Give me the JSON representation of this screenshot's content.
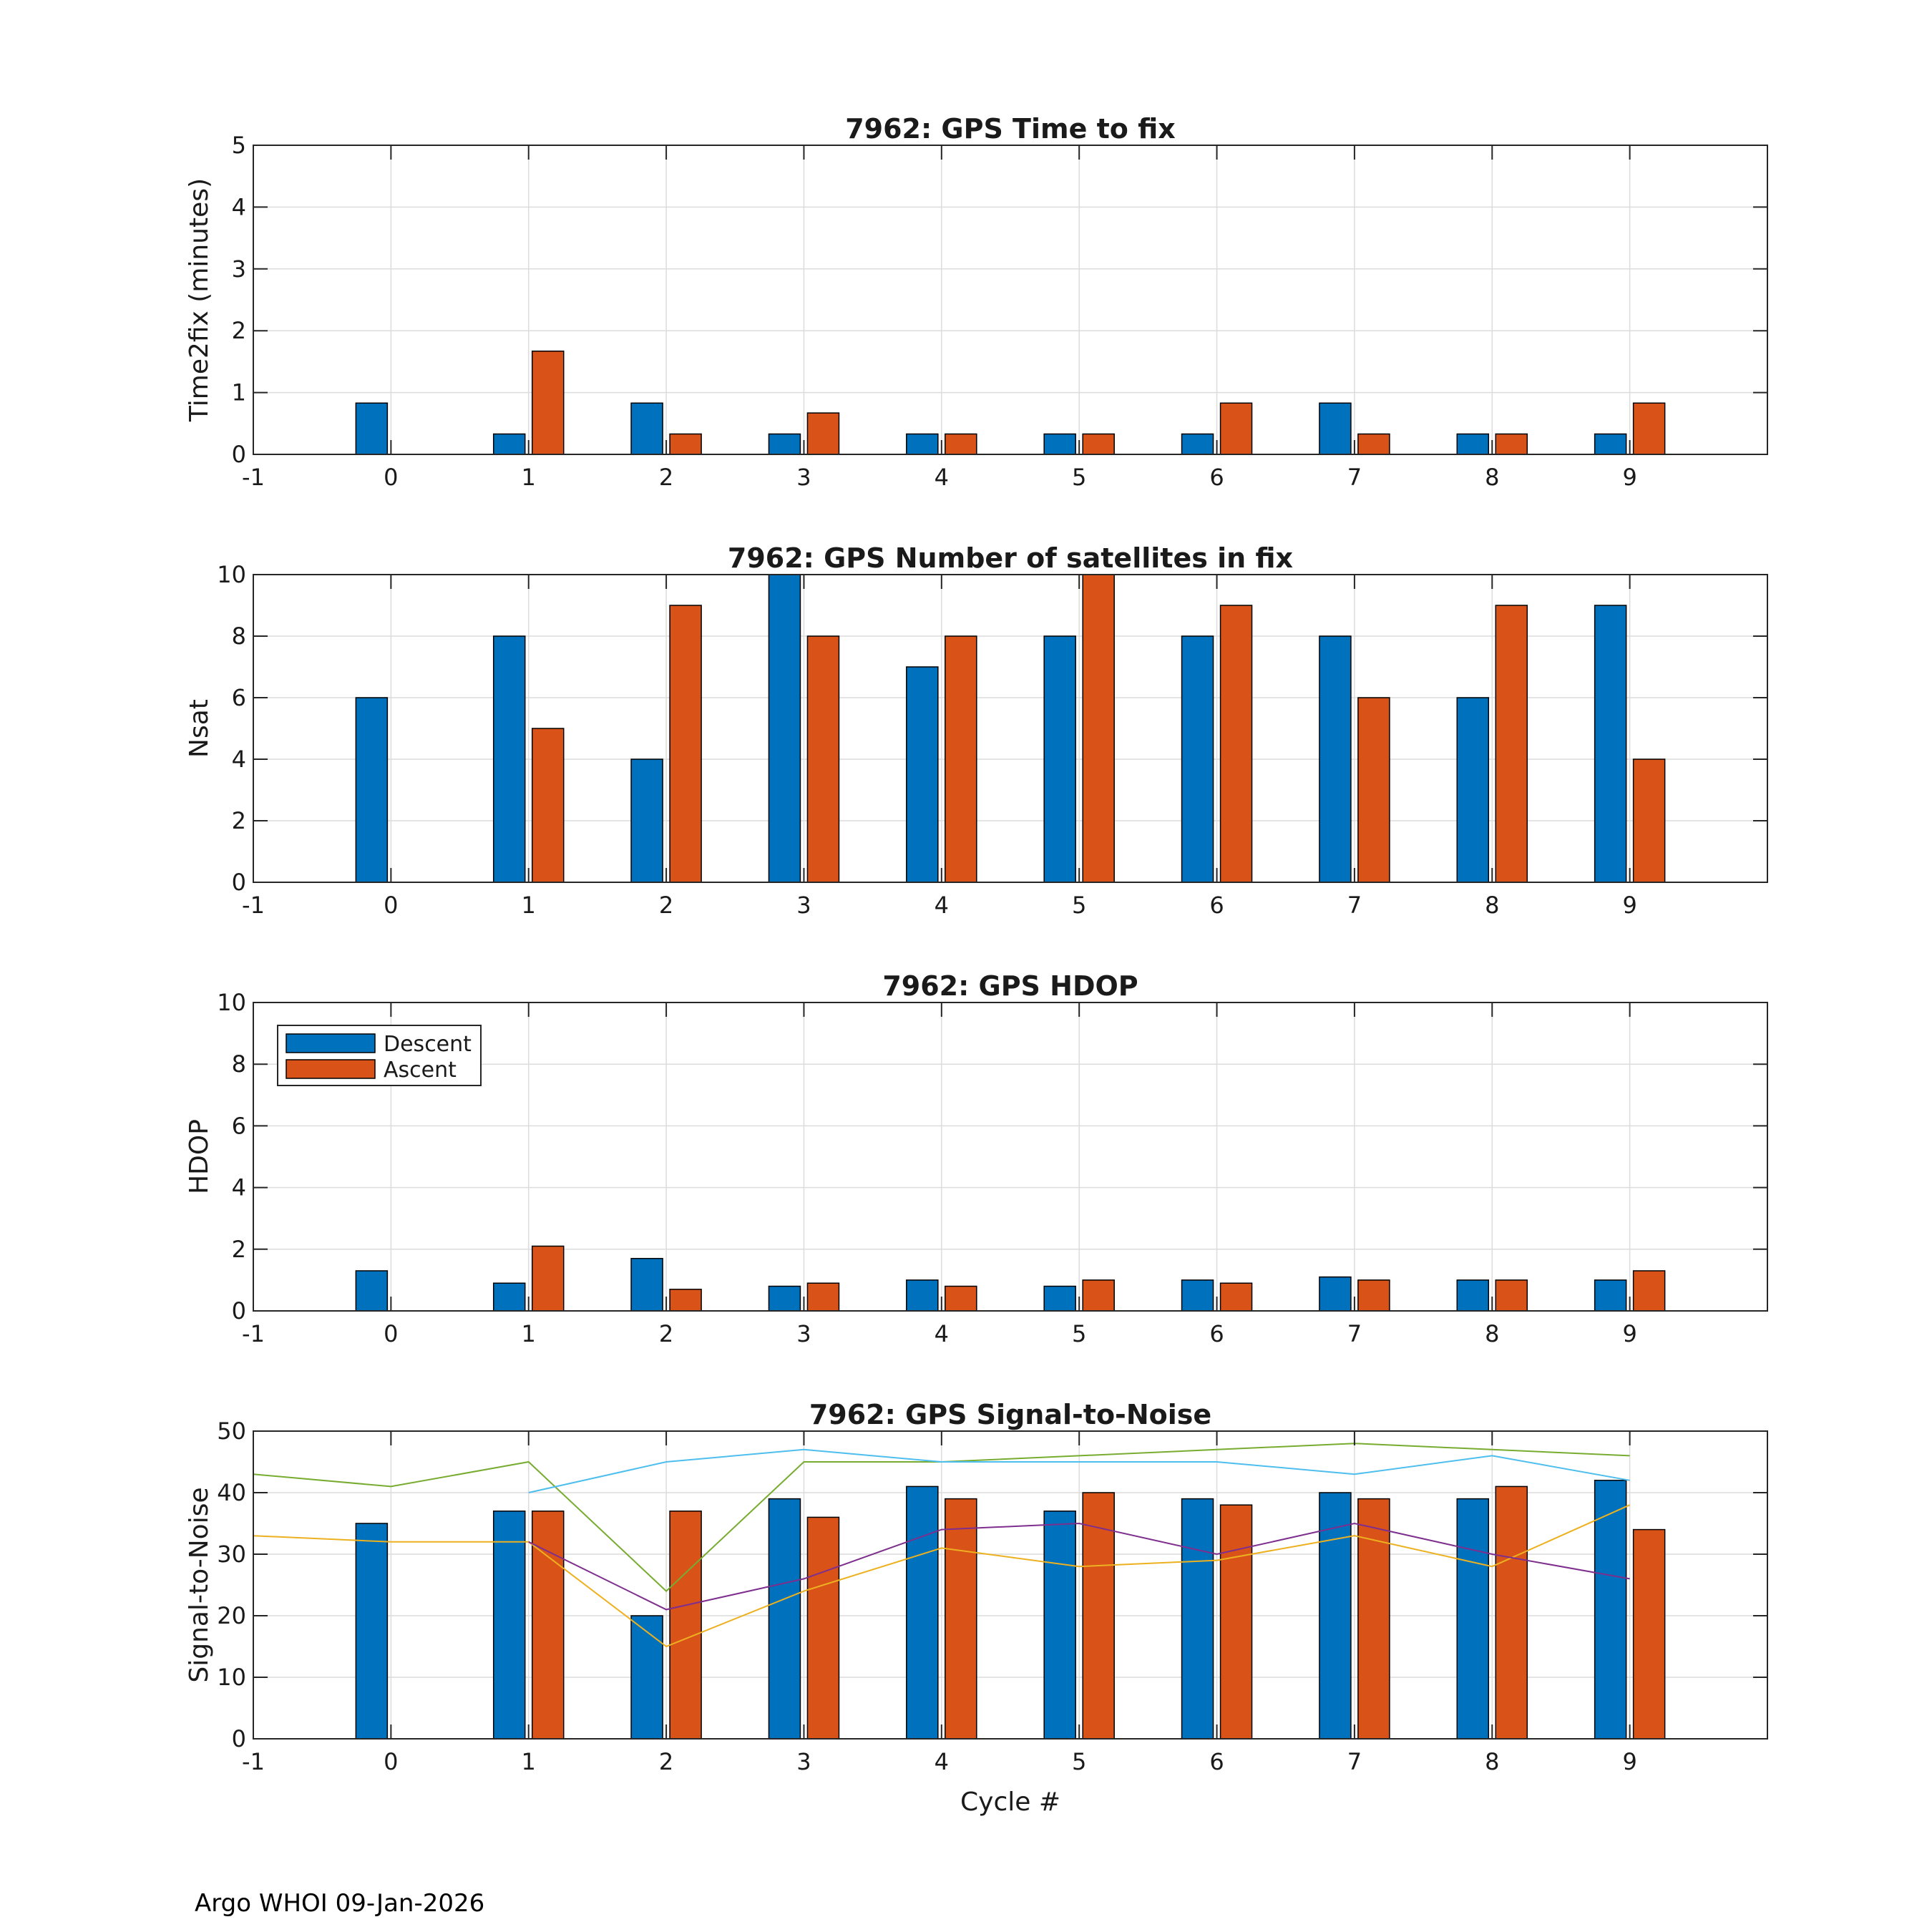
{
  "footer": "Argo WHOI 09-Jan-2026",
  "legend": {
    "descent": "Descent",
    "ascent": "Ascent"
  },
  "colors": {
    "descent": "#0072BD",
    "ascent": "#D95319",
    "snr_lines": [
      "#77AC30",
      "#4DBEEE",
      "#EDB120",
      "#7E2F8E"
    ]
  },
  "chart_data": [
    {
      "type": "bar",
      "title": "7962: GPS Time to fix",
      "xlabel": "",
      "ylabel": "Time2fix (minutes)",
      "xlim": [
        -1,
        10
      ],
      "ylim": [
        0,
        5
      ],
      "xticks": [
        "-1",
        "0",
        "1",
        "2",
        "3",
        "4",
        "5",
        "6",
        "7",
        "8",
        "9"
      ],
      "yticks": [
        "0",
        "1",
        "2",
        "3",
        "4",
        "5"
      ],
      "grid": true,
      "categories": [
        0,
        1,
        2,
        3,
        4,
        5,
        6,
        7,
        8,
        9
      ],
      "series": [
        {
          "name": "Descent",
          "values": [
            0.83,
            0.33,
            0.83,
            0.33,
            0.33,
            0.33,
            0.33,
            0.83,
            0.33,
            0.33
          ]
        },
        {
          "name": "Ascent",
          "values": [
            0,
            1.67,
            0.33,
            0.67,
            0.33,
            0.33,
            0.83,
            0.33,
            0.33,
            0.83
          ]
        }
      ]
    },
    {
      "type": "bar",
      "title": "7962: GPS Number of satellites in fix",
      "xlabel": "",
      "ylabel": "Nsat",
      "xlim": [
        -1,
        10
      ],
      "ylim": [
        0,
        10
      ],
      "xticks": [
        "-1",
        "0",
        "1",
        "2",
        "3",
        "4",
        "5",
        "6",
        "7",
        "8",
        "9"
      ],
      "yticks": [
        "0",
        "2",
        "4",
        "6",
        "8",
        "10"
      ],
      "grid": true,
      "categories": [
        0,
        1,
        2,
        3,
        4,
        5,
        6,
        7,
        8,
        9
      ],
      "series": [
        {
          "name": "Descent",
          "values": [
            6,
            8,
            4,
            10,
            7,
            8,
            8,
            8,
            6,
            9
          ]
        },
        {
          "name": "Ascent",
          "values": [
            0,
            5,
            9,
            8,
            8,
            10,
            9,
            6,
            9,
            4
          ]
        }
      ]
    },
    {
      "type": "bar",
      "title": "7962: GPS HDOP",
      "xlabel": "",
      "ylabel": "HDOP",
      "xlim": [
        -1,
        10
      ],
      "ylim": [
        0,
        10
      ],
      "xticks": [
        "-1",
        "0",
        "1",
        "2",
        "3",
        "4",
        "5",
        "6",
        "7",
        "8",
        "9"
      ],
      "yticks": [
        "0",
        "2",
        "4",
        "6",
        "8",
        "10"
      ],
      "grid": true,
      "legend_position": "top-left",
      "categories": [
        0,
        1,
        2,
        3,
        4,
        5,
        6,
        7,
        8,
        9
      ],
      "series": [
        {
          "name": "Descent",
          "values": [
            1.3,
            0.9,
            1.7,
            0.8,
            1.0,
            0.8,
            1.0,
            1.1,
            1.0,
            1.0
          ]
        },
        {
          "name": "Ascent",
          "values": [
            0,
            2.1,
            0.7,
            0.9,
            0.8,
            1.0,
            0.9,
            1.0,
            1.0,
            1.3
          ]
        }
      ]
    },
    {
      "type": "bar",
      "title": "7962: GPS Signal-to-Noise",
      "xlabel": "Cycle #",
      "ylabel": "Signal-to-Noise",
      "xlim": [
        -1,
        10
      ],
      "ylim": [
        0,
        50
      ],
      "xticks": [
        "-1",
        "0",
        "1",
        "2",
        "3",
        "4",
        "5",
        "6",
        "7",
        "8",
        "9"
      ],
      "yticks": [
        "0",
        "10",
        "20",
        "30",
        "40",
        "50"
      ],
      "grid": true,
      "categories": [
        0,
        1,
        2,
        3,
        4,
        5,
        6,
        7,
        8,
        9
      ],
      "series": [
        {
          "name": "Descent",
          "values": [
            35,
            37,
            20,
            39,
            41,
            37,
            39,
            40,
            39,
            42
          ]
        },
        {
          "name": "Ascent",
          "values": [
            0,
            37,
            37,
            36,
            39,
            40,
            38,
            39,
            41,
            34
          ]
        }
      ],
      "lines": [
        {
          "x": [
            -1,
            0,
            1,
            2,
            3,
            4,
            5,
            6,
            7,
            8,
            9
          ],
          "y": [
            43,
            41,
            45,
            24,
            45,
            45,
            46,
            47,
            48,
            47,
            46
          ]
        },
        {
          "x": [
            1,
            2,
            3,
            4,
            5,
            6,
            7,
            8,
            9
          ],
          "y": [
            40,
            45,
            47,
            45,
            45,
            45,
            43,
            46,
            42
          ]
        },
        {
          "x": [
            -1,
            0,
            1,
            2,
            3,
            4,
            5,
            6,
            7,
            8,
            9
          ],
          "y": [
            33,
            32,
            32,
            15,
            24,
            31,
            28,
            29,
            33,
            28,
            38
          ]
        },
        {
          "x": [
            1,
            2,
            3,
            4,
            5,
            6,
            7,
            8,
            9
          ],
          "y": [
            32,
            21,
            26,
            34,
            35,
            30,
            35,
            30,
            26
          ]
        }
      ]
    }
  ]
}
